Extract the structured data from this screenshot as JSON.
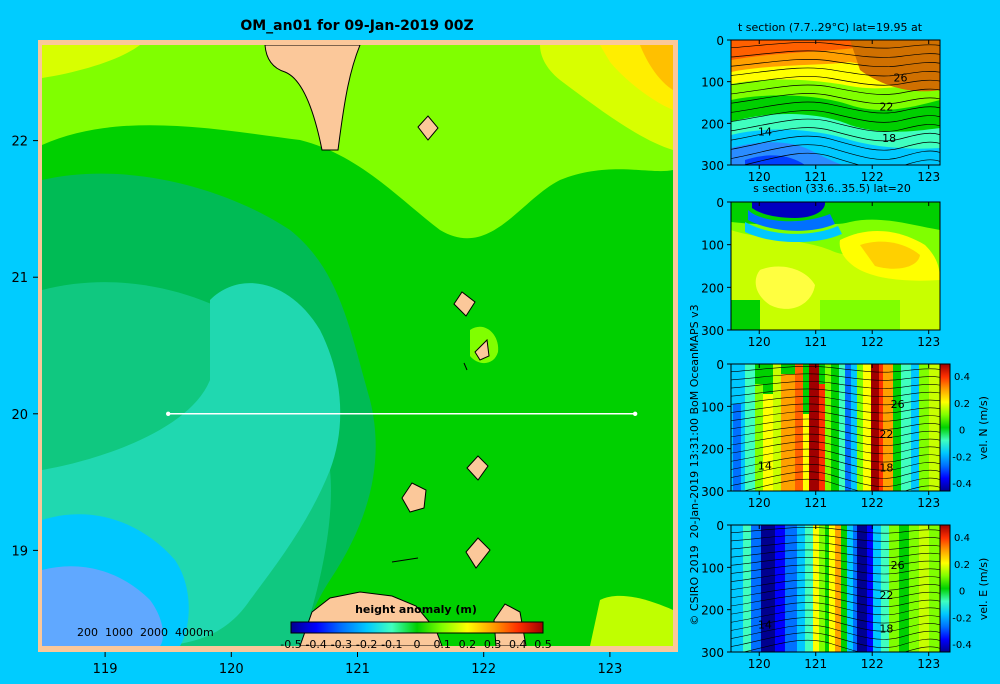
{
  "colors": {
    "background": "#00ccff",
    "land": "#fbc89a",
    "transect": "#ffffff",
    "colorbar": [
      "#00008f",
      "#0000ff",
      "#0070ff",
      "#00c8ff",
      "#40ffbf",
      "#00d000",
      "#80ff00",
      "#ffff00",
      "#ffa000",
      "#ff3000",
      "#a00000"
    ]
  },
  "chart_data": [
    {
      "type": "heatmap",
      "id": "map",
      "title": "OM_an01 for 09-Jan-2019 00Z",
      "xlim": [
        118.5,
        123.5
      ],
      "ylim": [
        18.3,
        22.7
      ],
      "x_ticks": [
        119,
        120,
        121,
        122,
        123
      ],
      "y_ticks": [
        19,
        20,
        21,
        22
      ],
      "grid": false,
      "transect": {
        "lat": 20,
        "lon_start": 119.5,
        "lon_end": 123.2
      },
      "depth_contour_legend": "200  1000  2000  4000m",
      "colorbar": {
        "label": "height anomaly (m)",
        "ticks": [
          "-0.5",
          "-0.4",
          "-0.3",
          "-0.2",
          "-0.1",
          "0",
          "0.1",
          "0.2",
          "0.3",
          "0.4",
          "0.5"
        ],
        "range": [
          -0.5,
          0.5
        ]
      }
    },
    {
      "type": "heatmap",
      "id": "t_section",
      "title": "t section (7.7..29°C) lat=19.95 at",
      "xlim": [
        119.5,
        123.2
      ],
      "ylim": [
        300,
        0
      ],
      "x_ticks": [
        120,
        121,
        122,
        123
      ],
      "y_ticks": [
        0,
        100,
        200,
        300
      ],
      "contour_labels": [
        {
          "text": "26",
          "lon": 122.5,
          "depth": 90
        },
        {
          "text": "22",
          "lon": 122.25,
          "depth": 160
        },
        {
          "text": "14",
          "lon": 120.1,
          "depth": 220
        },
        {
          "text": "18",
          "lon": 122.3,
          "depth": 235
        }
      ]
    },
    {
      "type": "heatmap",
      "id": "s_section",
      "title": "s section (33.6..35.5) lat=20",
      "xlim": [
        119.5,
        123.2
      ],
      "ylim": [
        300,
        0
      ],
      "x_ticks": [
        120,
        121,
        122,
        123
      ],
      "y_ticks": [
        0,
        100,
        200,
        300
      ]
    },
    {
      "type": "heatmap",
      "id": "vn_section",
      "xlim": [
        119.5,
        123.2
      ],
      "ylim": [
        300,
        0
      ],
      "x_ticks": [
        120,
        121,
        122,
        123
      ],
      "y_ticks": [
        0,
        100,
        200,
        300
      ],
      "contour_labels": [
        {
          "text": "26",
          "lon": 122.45,
          "depth": 95
        },
        {
          "text": "22",
          "lon": 122.25,
          "depth": 165
        },
        {
          "text": "14",
          "lon": 120.1,
          "depth": 240
        },
        {
          "text": "18",
          "lon": 122.25,
          "depth": 245
        }
      ],
      "colorbar": {
        "label": "vel. N (m/s)",
        "ticks": [
          "0.4",
          "0.2",
          "0",
          "-0.2",
          "-0.4"
        ],
        "range": [
          -0.4,
          0.4
        ]
      }
    },
    {
      "type": "heatmap",
      "id": "ve_section",
      "xlim": [
        119.5,
        123.2
      ],
      "ylim": [
        300,
        0
      ],
      "x_ticks": [
        120,
        121,
        122,
        123
      ],
      "y_ticks": [
        0,
        100,
        200,
        300
      ],
      "contour_labels": [
        {
          "text": "26",
          "lon": 122.45,
          "depth": 95
        },
        {
          "text": "22",
          "lon": 122.25,
          "depth": 165
        },
        {
          "text": "14",
          "lon": 120.1,
          "depth": 235
        },
        {
          "text": "18",
          "lon": 122.25,
          "depth": 245
        }
      ],
      "colorbar": {
        "label": "vel. E (m/s)",
        "ticks": [
          "0.4",
          "0.2",
          "0",
          "-0.2",
          "-0.4"
        ],
        "range": [
          -0.4,
          0.4
        ]
      }
    }
  ],
  "credit": "© CSIRO 2019  20-Jan-2019 13:31:00 BoM OceanMAPS v3"
}
